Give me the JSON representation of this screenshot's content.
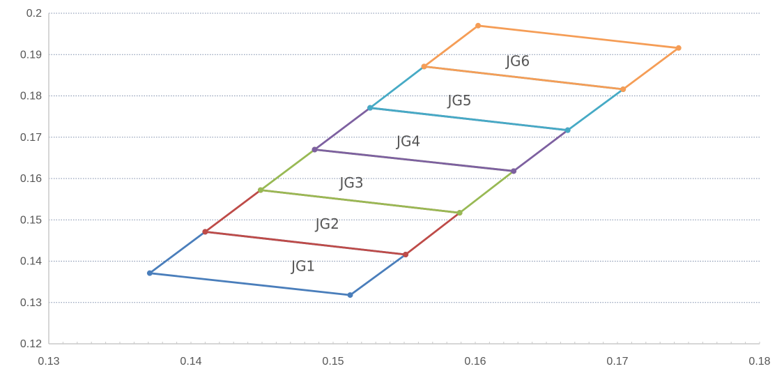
{
  "chart_data": {
    "type": "line",
    "title": "",
    "xlabel": "",
    "ylabel": "",
    "xlim": [
      0.13,
      0.18
    ],
    "ylim": [
      0.12,
      0.2
    ],
    "x_ticks": [
      "0.13",
      "0.14",
      "0.15",
      "0.16",
      "0.17",
      "0.18"
    ],
    "y_ticks": [
      "0.12",
      "0.13",
      "0.14",
      "0.15",
      "0.16",
      "0.17",
      "0.18",
      "0.19",
      "0.2"
    ],
    "grid": "horizontal dotted",
    "legend": "none",
    "series": [
      {
        "name": "JG1",
        "color": "#4a7ebb",
        "label_at": [
          0.1479,
          0.1388
        ],
        "points": [
          [
            0.1371,
            0.1371
          ],
          [
            0.1512,
            0.1318
          ],
          [
            0.1551,
            0.1416
          ],
          [
            0.141,
            0.1471
          ],
          [
            0.1371,
            0.1371
          ]
        ]
      },
      {
        "name": "JG2",
        "color": "#be4b48",
        "label_at": [
          0.1496,
          0.149
        ],
        "points": [
          [
            0.141,
            0.1471
          ],
          [
            0.1551,
            0.1416
          ],
          [
            0.1589,
            0.1517
          ],
          [
            0.1449,
            0.1572
          ],
          [
            0.141,
            0.1471
          ]
        ]
      },
      {
        "name": "JG3",
        "color": "#98b954",
        "label_at": [
          0.1513,
          0.159
        ],
        "points": [
          [
            0.1449,
            0.1572
          ],
          [
            0.1589,
            0.1517
          ],
          [
            0.1627,
            0.1618
          ],
          [
            0.1487,
            0.167
          ],
          [
            0.1449,
            0.1572
          ]
        ]
      },
      {
        "name": "JG4",
        "color": "#7d60a0",
        "label_at": [
          0.1553,
          0.169
        ],
        "points": [
          [
            0.1487,
            0.167
          ],
          [
            0.1627,
            0.1618
          ],
          [
            0.1665,
            0.1717
          ],
          [
            0.1526,
            0.1771
          ],
          [
            0.1487,
            0.167
          ]
        ]
      },
      {
        "name": "JG5",
        "color": "#46aac5",
        "label_at": [
          0.1589,
          0.1789
        ],
        "points": [
          [
            0.1526,
            0.1771
          ],
          [
            0.1665,
            0.1717
          ],
          [
            0.1704,
            0.1816
          ],
          [
            0.1564,
            0.1871
          ],
          [
            0.1526,
            0.1771
          ]
        ]
      },
      {
        "name": "JG6",
        "color": "#f59d56",
        "label_at": [
          0.163,
          0.1884
        ],
        "points": [
          [
            0.1564,
            0.1871
          ],
          [
            0.1704,
            0.1816
          ],
          [
            0.1743,
            0.1916
          ],
          [
            0.1602,
            0.197
          ],
          [
            0.1564,
            0.1871
          ]
        ]
      }
    ]
  }
}
